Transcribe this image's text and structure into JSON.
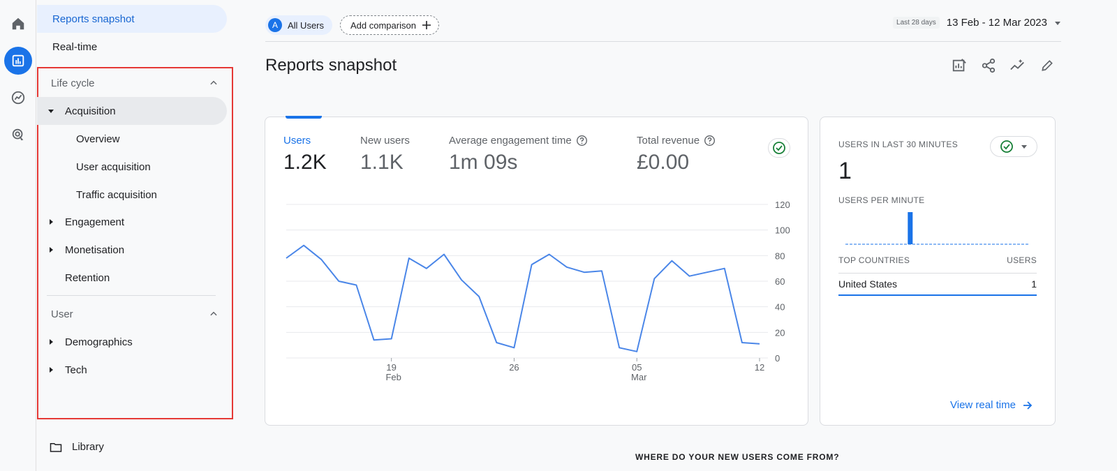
{
  "nav": {
    "top_items": [
      {
        "label": "Reports snapshot",
        "selected": true
      },
      {
        "label": "Real-time",
        "selected": false
      }
    ],
    "sections": [
      {
        "title": "Life cycle",
        "items": [
          {
            "label": "Acquisition",
            "expanded": true
          },
          {
            "label": "Overview"
          },
          {
            "label": "User acquisition"
          },
          {
            "label": "Traffic acquisition"
          },
          {
            "label": "Engagement"
          },
          {
            "label": "Monetisation"
          },
          {
            "label": "Retention"
          }
        ]
      },
      {
        "title": "User",
        "items": [
          {
            "label": "Demographics"
          },
          {
            "label": "Tech"
          }
        ]
      }
    ],
    "library_label": "Library"
  },
  "header": {
    "user_chip_letter": "A",
    "user_chip_label": "All Users",
    "add_comparison_label": "Add comparison",
    "date_small": "Last 28 days",
    "date_range": "13 Feb - 12 Mar 2023"
  },
  "page_title": "Reports snapshot",
  "metrics": [
    {
      "label": "Users",
      "value": "1.2K",
      "active": true
    },
    {
      "label": "New users",
      "value": "1.1K"
    },
    {
      "label": "Average engagement time",
      "value": "1m 09s",
      "help": true
    },
    {
      "label": "Total revenue",
      "value": "£0.00",
      "help": true
    }
  ],
  "chart_data": {
    "type": "line",
    "x": [
      "13 Feb",
      "14 Feb",
      "15 Feb",
      "16 Feb",
      "17 Feb",
      "18 Feb",
      "19 Feb",
      "20 Feb",
      "21 Feb",
      "22 Feb",
      "23 Feb",
      "24 Feb",
      "25 Feb",
      "26 Feb",
      "27 Feb",
      "28 Feb",
      "01 Mar",
      "02 Mar",
      "03 Mar",
      "04 Mar",
      "05 Mar",
      "06 Mar",
      "07 Mar",
      "08 Mar",
      "09 Mar",
      "10 Mar",
      "11 Mar",
      "12 Mar"
    ],
    "series": [
      {
        "values": [
          78,
          88,
          77,
          60,
          57,
          14,
          15,
          78,
          70,
          81,
          61,
          48,
          12,
          8,
          73,
          81,
          71,
          67,
          68,
          8,
          5,
          62,
          76,
          64,
          67,
          70,
          12,
          11
        ]
      }
    ],
    "yticks": [
      0,
      20,
      40,
      60,
      80,
      100,
      120
    ],
    "ylim": [
      0,
      120
    ],
    "xtick_labels": [
      {
        "day": "19",
        "month": "Feb",
        "index": 6
      },
      {
        "day": "26",
        "month": "",
        "index": 13
      },
      {
        "day": "05",
        "month": "Mar",
        "index": 20
      },
      {
        "day": "12",
        "month": "",
        "index": 27
      }
    ],
    "grid": true,
    "color": "#4a86e8"
  },
  "realtime": {
    "title": "USERS IN LAST 30 MINUTES",
    "value": "1",
    "per_minute_label": "USERS PER MINUTE",
    "per_minute_values": [
      0,
      0,
      0,
      0,
      0,
      0,
      0,
      0,
      0,
      0,
      1,
      0,
      0,
      0,
      0,
      0,
      0,
      0,
      0,
      0,
      0,
      0,
      0,
      0,
      0,
      0,
      0,
      0,
      0,
      0
    ],
    "table_header_left": "TOP COUNTRIES",
    "table_header_right": "USERS",
    "rows": [
      {
        "country": "United States",
        "users": "1"
      }
    ],
    "view_link": "View real time"
  },
  "bottom_question": "WHERE DO YOUR NEW USERS COME FROM?"
}
